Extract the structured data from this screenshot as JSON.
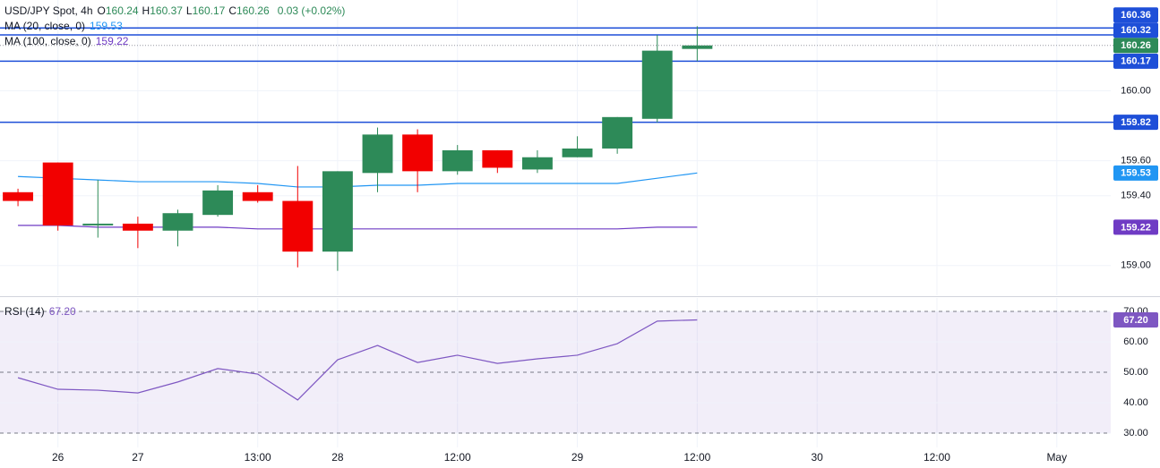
{
  "chart_data": [
    {
      "type": "candlestick",
      "title": "USD/JPY Spot, 4h",
      "ohlc_text": [
        {
          "key": "O",
          "value": "160.24"
        },
        {
          "key": "H",
          "value": "160.37"
        },
        {
          "key": "L",
          "value": "160.17"
        },
        {
          "key": "C",
          "value": "160.26"
        }
      ],
      "change_text": "0.03 (+0.02%)",
      "open": [
        159.42,
        159.59,
        159.23,
        159.24,
        159.2,
        159.29,
        159.42,
        159.37,
        159.08,
        159.53,
        159.75,
        159.54,
        159.66,
        159.55,
        159.62,
        159.67,
        159.84,
        160.24
      ],
      "high": [
        159.44,
        159.59,
        159.49,
        159.28,
        159.32,
        159.46,
        159.46,
        159.57,
        159.54,
        159.79,
        159.78,
        159.69,
        159.66,
        159.66,
        159.74,
        159.85,
        160.32,
        160.37
      ],
      "low": [
        159.34,
        159.2,
        159.16,
        159.1,
        159.11,
        159.28,
        159.36,
        158.99,
        158.97,
        159.42,
        159.42,
        159.52,
        159.53,
        159.53,
        159.62,
        159.64,
        159.82,
        160.17
      ],
      "close": [
        159.37,
        159.23,
        159.24,
        159.2,
        159.3,
        159.43,
        159.37,
        159.08,
        159.54,
        159.75,
        159.54,
        159.66,
        159.56,
        159.62,
        159.67,
        159.85,
        160.23,
        160.26
      ],
      "up_color": "#2d8a58",
      "down_color": "#f20000",
      "overlays": [
        {
          "name": "MA (20, close, 0)",
          "color": "#2196f3",
          "values": [
            159.51,
            159.5,
            159.49,
            159.48,
            159.48,
            159.48,
            159.47,
            159.45,
            159.45,
            159.46,
            159.46,
            159.47,
            159.47,
            159.47,
            159.47,
            159.47,
            159.5,
            159.53
          ]
        },
        {
          "name": "MA (100, close, 0)",
          "color": "#6f3bc4",
          "values": [
            159.23,
            159.23,
            159.22,
            159.22,
            159.22,
            159.22,
            159.21,
            159.21,
            159.21,
            159.21,
            159.21,
            159.21,
            159.21,
            159.21,
            159.21,
            159.21,
            159.22,
            159.22
          ]
        }
      ],
      "levels": [
        160.36,
        160.32,
        160.17,
        159.82
      ],
      "level_color": "#1e4fd8",
      "ylim": [
        158.83,
        160.52
      ],
      "yticks": [
        {
          "value": 159,
          "label": "159.00"
        },
        {
          "value": 159.4,
          "label": "159.40"
        },
        {
          "value": 159.6,
          "label": "159.60"
        },
        {
          "value": 160,
          "label": "160.00"
        }
      ],
      "xlim": [
        -0.45,
        27.35
      ],
      "xticks": [
        {
          "value": 1,
          "label": "26"
        },
        {
          "value": 3,
          "label": "27"
        },
        {
          "value": 6,
          "label": "13:00"
        },
        {
          "value": 8,
          "label": "28"
        },
        {
          "value": 11,
          "label": "12:00"
        },
        {
          "value": 14,
          "label": "29"
        },
        {
          "value": 17,
          "label": "12:00"
        },
        {
          "value": 20,
          "label": "30"
        },
        {
          "value": 23,
          "label": "12:00"
        },
        {
          "value": 26,
          "label": "May"
        }
      ],
      "grid": true
    },
    {
      "type": "line",
      "series": [
        {
          "name": "RSI (14)",
          "color": "#7e57c2",
          "values": [
            48.2,
            44.4,
            44.1,
            43.2,
            46.8,
            51.2,
            49.4,
            40.9,
            54.1,
            58.8,
            53.2,
            55.6,
            52.9,
            54.4,
            55.6,
            59.4,
            66.8,
            67.2
          ],
          "value_labels": [
            null,
            null,
            null,
            null,
            null,
            null,
            null,
            null,
            null,
            null,
            null,
            null,
            null,
            null,
            null,
            null,
            null,
            "67.20"
          ]
        }
      ],
      "band": [
        30,
        70
      ],
      "band_color": "#7e57c2",
      "levels": [
        70,
        50,
        30
      ],
      "ylim": [
        25.3,
        74.4
      ],
      "yticks": [
        {
          "value": 30,
          "label": "30.00"
        },
        {
          "value": 40,
          "label": "40.00"
        },
        {
          "value": 50,
          "label": "50.00"
        },
        {
          "value": 60,
          "label": "60.00"
        },
        {
          "value": 70,
          "label": "70.00"
        }
      ],
      "grid": true
    }
  ]
}
